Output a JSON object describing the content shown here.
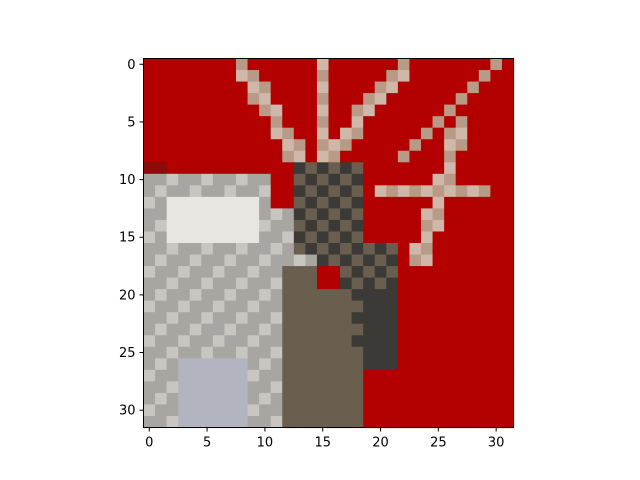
{
  "figure": {
    "image_description_kind": "pixelated 32x32 image of a deer/antelope head with antlers on a red background",
    "background_color": "#b30000",
    "image_grid": {
      "rows": 32,
      "cols": 32
    },
    "x_axis": {
      "ticks": [
        0,
        5,
        10,
        15,
        20,
        25,
        30
      ],
      "tick_labels": [
        "0",
        "5",
        "10",
        "15",
        "20",
        "25",
        "30"
      ]
    },
    "y_axis": {
      "ticks": [
        0,
        5,
        10,
        15,
        20,
        25,
        30
      ],
      "tick_labels": [
        "0",
        "5",
        "10",
        "15",
        "20",
        "25",
        "30"
      ]
    },
    "palette": {
      "red": "#b30000",
      "dark_red": "#8c0b0b",
      "antler": "#b89a86",
      "antler_light": "#cfb8aa",
      "dark": "#3c3a36",
      "brown": "#6a5e4e",
      "gray": "#a8a6a2",
      "light_gray": "#c9c6c2",
      "white": "#e8e6e0",
      "blue_gray": "#b2b4c0"
    }
  }
}
